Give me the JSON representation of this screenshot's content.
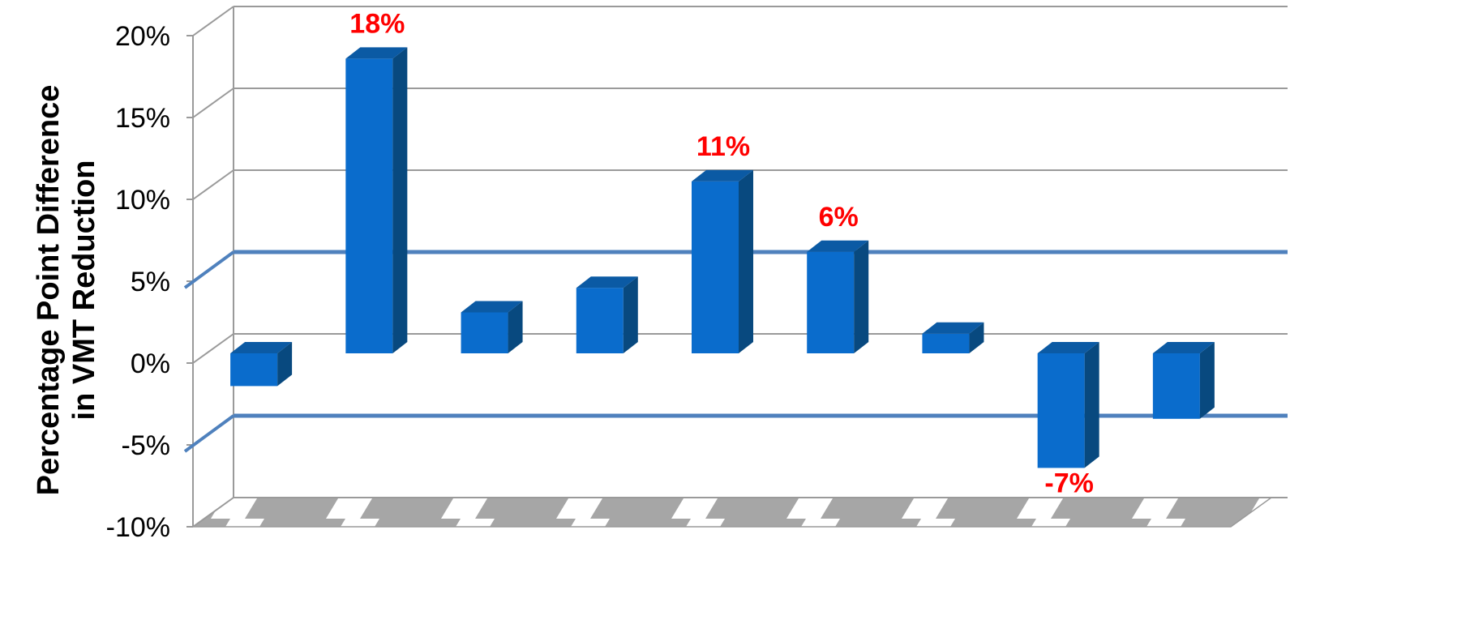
{
  "chart_data": {
    "type": "bar",
    "title": "",
    "ylabel_lines": [
      "Percentage Point Difference",
      "in VMT Reduction"
    ],
    "xlabel": "",
    "ylim": [
      -10,
      20
    ],
    "yticks": [
      -10,
      -5,
      0,
      5,
      10,
      15,
      20
    ],
    "ytick_labels": [
      "-10%",
      "-5%",
      "0%",
      "5%",
      "10%",
      "15%",
      "20%"
    ],
    "categories": [
      "",
      "",
      "",
      "",
      "",
      "",
      "",
      "",
      ""
    ],
    "values": [
      -2,
      18,
      2.5,
      4,
      10.5,
      6.2,
      1.2,
      -7,
      -4
    ],
    "data_labels": [
      "",
      "18%",
      "",
      "",
      "11%",
      "6%",
      "",
      "-7%",
      ""
    ],
    "highlight_lines": [
      5,
      -5
    ],
    "grid": true,
    "colors": {
      "bar_front": "#0a6ccc",
      "bar_side": "#08497f",
      "bar_top": "#0b5aa4",
      "grid": "#9a9a9a",
      "highlight_line": "#4f81bd",
      "data_label": "#ff0000",
      "floor": "#a6a6a6"
    }
  }
}
